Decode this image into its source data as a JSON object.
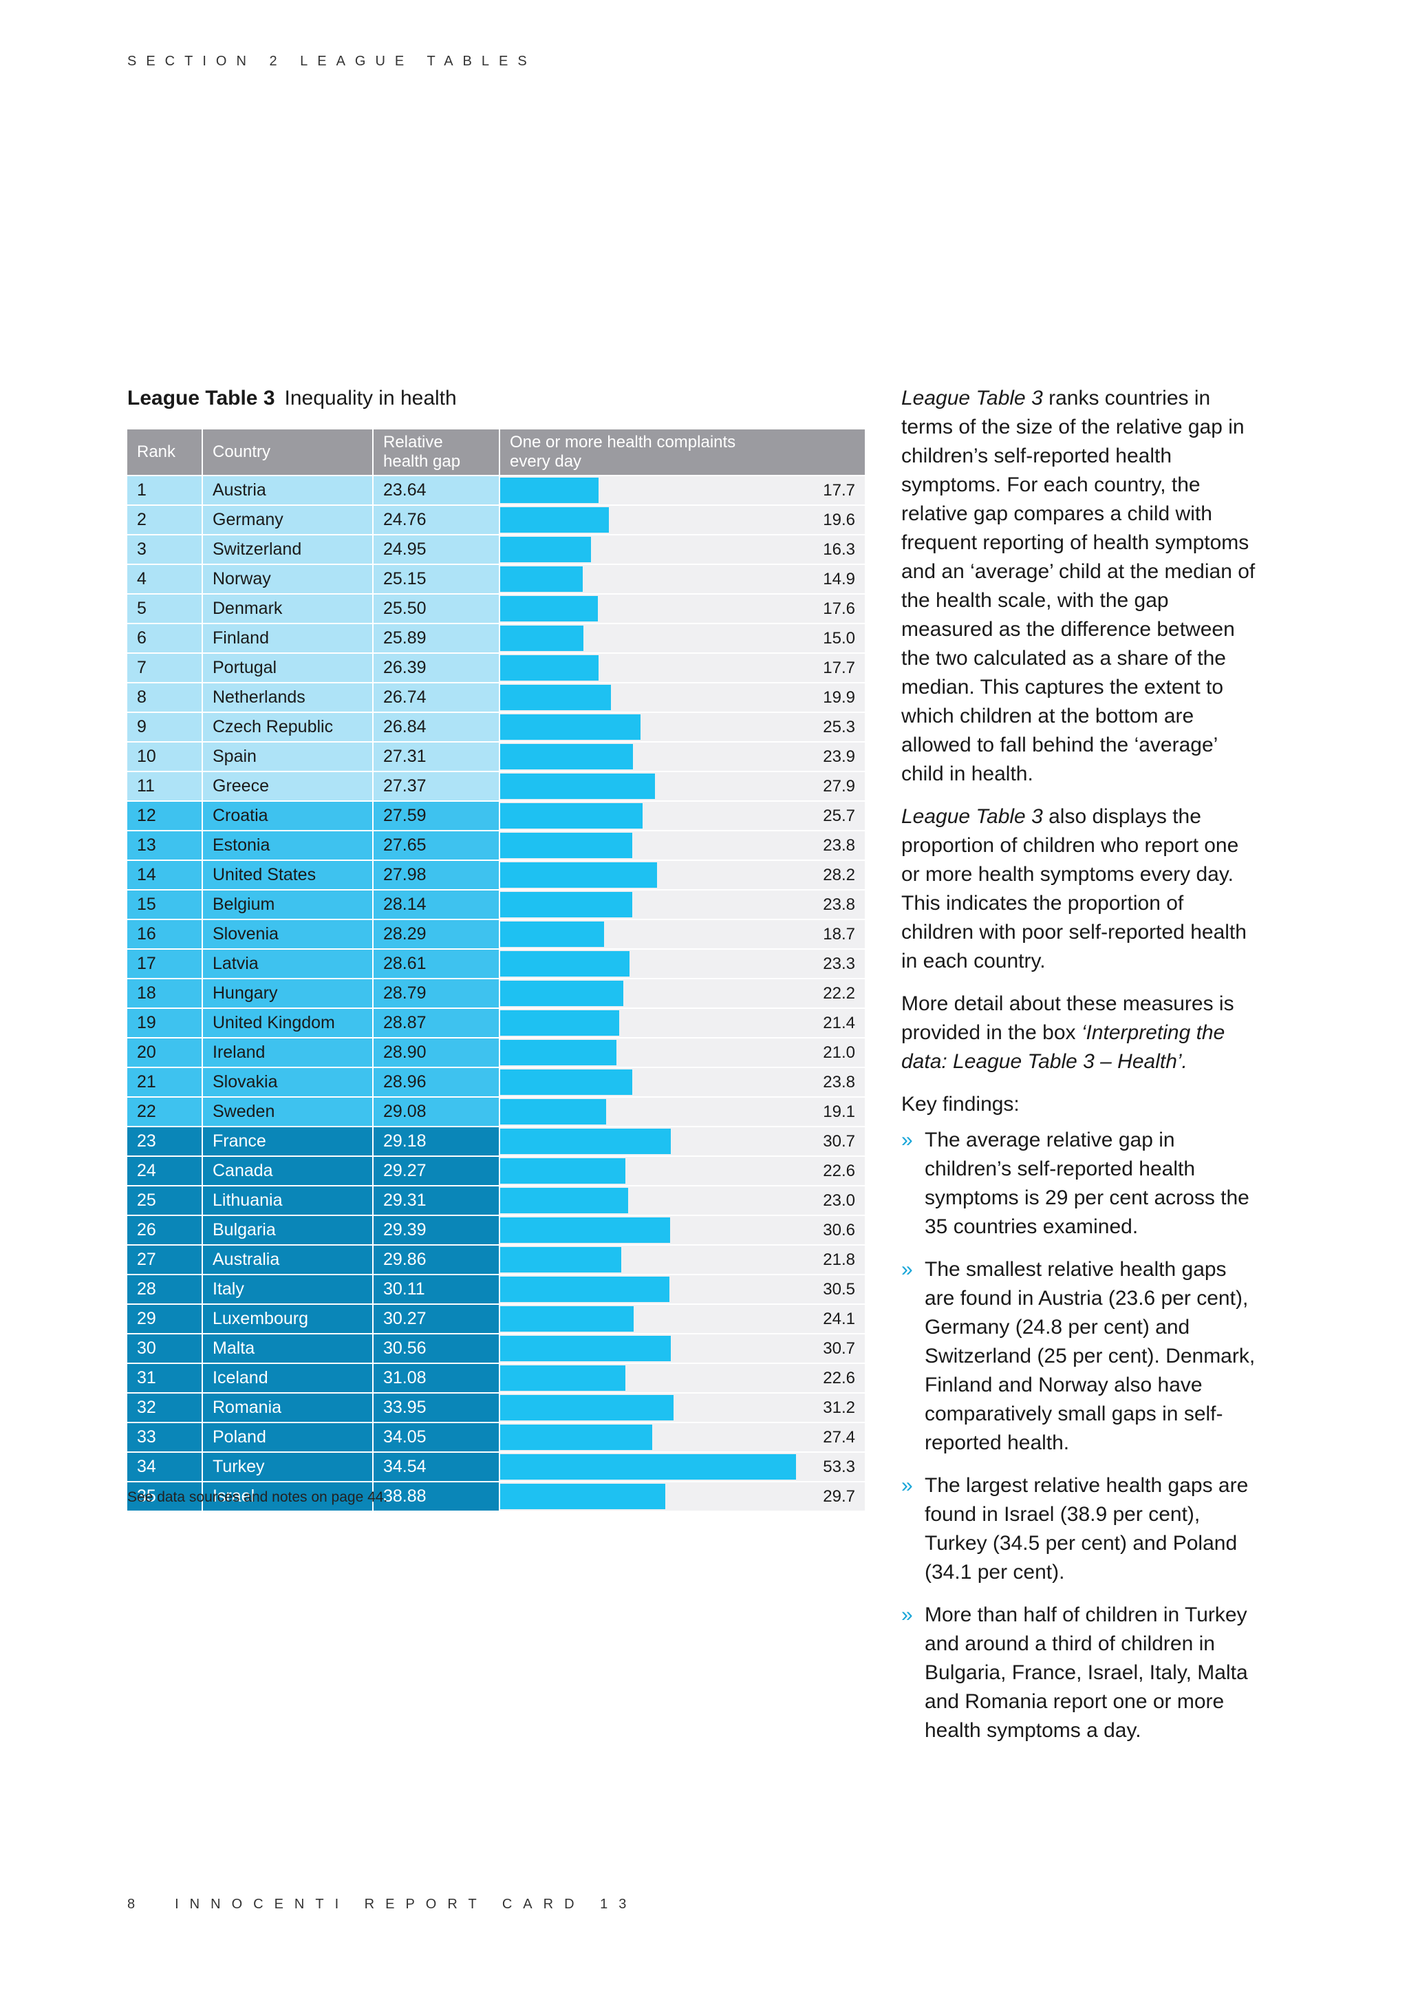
{
  "header": {
    "section": "SECTION 2 LEAGUE TABLES"
  },
  "footer": {
    "page": "8",
    "title": "INNOCENTI REPORT CARD 13"
  },
  "table": {
    "title_bold": "League Table 3",
    "title": "Inequality in health",
    "columns": {
      "rank": "Rank",
      "country": "Country",
      "gap_line1": "Relative",
      "gap_line2": "health gap",
      "complaints_line1": "One or more health complaints",
      "complaints_line2": "every day"
    },
    "bar_max": 53.3,
    "colors": {
      "tier1": "#aee3f7",
      "tier2": "#3ec2ef",
      "tier3": "#0a86b8",
      "bar": "#1ec1f2",
      "header": "#9b9ba0"
    },
    "rows": [
      {
        "rank": "1",
        "country": "Austria",
        "gap": "23.64",
        "complaints": "17.7",
        "tier": 1
      },
      {
        "rank": "2",
        "country": "Germany",
        "gap": "24.76",
        "complaints": "19.6",
        "tier": 1
      },
      {
        "rank": "3",
        "country": "Switzerland",
        "gap": "24.95",
        "complaints": "16.3",
        "tier": 1
      },
      {
        "rank": "4",
        "country": "Norway",
        "gap": "25.15",
        "complaints": "14.9",
        "tier": 1
      },
      {
        "rank": "5",
        "country": "Denmark",
        "gap": "25.50",
        "complaints": "17.6",
        "tier": 1
      },
      {
        "rank": "6",
        "country": "Finland",
        "gap": "25.89",
        "complaints": "15.0",
        "tier": 1
      },
      {
        "rank": "7",
        "country": "Portugal",
        "gap": "26.39",
        "complaints": "17.7",
        "tier": 1
      },
      {
        "rank": "8",
        "country": "Netherlands",
        "gap": "26.74",
        "complaints": "19.9",
        "tier": 1
      },
      {
        "rank": "9",
        "country": "Czech Republic",
        "gap": "26.84",
        "complaints": "25.3",
        "tier": 1
      },
      {
        "rank": "10",
        "country": "Spain",
        "gap": "27.31",
        "complaints": "23.9",
        "tier": 1
      },
      {
        "rank": "11",
        "country": "Greece",
        "gap": "27.37",
        "complaints": "27.9",
        "tier": 1
      },
      {
        "rank": "12",
        "country": "Croatia",
        "gap": "27.59",
        "complaints": "25.7",
        "tier": 2
      },
      {
        "rank": "13",
        "country": "Estonia",
        "gap": "27.65",
        "complaints": "23.8",
        "tier": 2
      },
      {
        "rank": "14",
        "country": "United States",
        "gap": "27.98",
        "complaints": "28.2",
        "tier": 2
      },
      {
        "rank": "15",
        "country": "Belgium",
        "gap": "28.14",
        "complaints": "23.8",
        "tier": 2
      },
      {
        "rank": "16",
        "country": "Slovenia",
        "gap": "28.29",
        "complaints": "18.7",
        "tier": 2
      },
      {
        "rank": "17",
        "country": "Latvia",
        "gap": "28.61",
        "complaints": "23.3",
        "tier": 2
      },
      {
        "rank": "18",
        "country": "Hungary",
        "gap": "28.79",
        "complaints": "22.2",
        "tier": 2
      },
      {
        "rank": "19",
        "country": "United Kingdom",
        "gap": "28.87",
        "complaints": "21.4",
        "tier": 2
      },
      {
        "rank": "20",
        "country": "Ireland",
        "gap": "28.90",
        "complaints": "21.0",
        "tier": 2
      },
      {
        "rank": "21",
        "country": "Slovakia",
        "gap": "28.96",
        "complaints": "23.8",
        "tier": 2
      },
      {
        "rank": "22",
        "country": "Sweden",
        "gap": "29.08",
        "complaints": "19.1",
        "tier": 2
      },
      {
        "rank": "23",
        "country": "France",
        "gap": "29.18",
        "complaints": "30.7",
        "tier": 3
      },
      {
        "rank": "24",
        "country": "Canada",
        "gap": "29.27",
        "complaints": "22.6",
        "tier": 3
      },
      {
        "rank": "25",
        "country": "Lithuania",
        "gap": "29.31",
        "complaints": "23.0",
        "tier": 3
      },
      {
        "rank": "26",
        "country": "Bulgaria",
        "gap": "29.39",
        "complaints": "30.6",
        "tier": 3
      },
      {
        "rank": "27",
        "country": "Australia",
        "gap": "29.86",
        "complaints": "21.8",
        "tier": 3
      },
      {
        "rank": "28",
        "country": "Italy",
        "gap": "30.11",
        "complaints": "30.5",
        "tier": 3
      },
      {
        "rank": "29",
        "country": "Luxembourg",
        "gap": "30.27",
        "complaints": "24.1",
        "tier": 3
      },
      {
        "rank": "30",
        "country": "Malta",
        "gap": "30.56",
        "complaints": "30.7",
        "tier": 3
      },
      {
        "rank": "31",
        "country": "Iceland",
        "gap": "31.08",
        "complaints": "22.6",
        "tier": 3
      },
      {
        "rank": "32",
        "country": "Romania",
        "gap": "33.95",
        "complaints": "31.2",
        "tier": 3
      },
      {
        "rank": "33",
        "country": "Poland",
        "gap": "34.05",
        "complaints": "27.4",
        "tier": 3
      },
      {
        "rank": "34",
        "country": "Turkey",
        "gap": "34.54",
        "complaints": "53.3",
        "tier": 3
      },
      {
        "rank": "35",
        "country": "Israel",
        "gap": "38.88",
        "complaints": "29.7",
        "tier": 3
      }
    ],
    "note": "See data sources and notes on page 44."
  },
  "side": {
    "p1_em": "League Table 3",
    "p1": " ranks countries in terms of the size of the relative gap in children’s self-reported health symptoms. For each country, the relative gap compares a child with frequent reporting of health symptoms and an ‘average’ child at the median of the health scale, with the gap measured as the difference between the two calculated as a share of the median. This captures the extent to which children at the bottom are allowed to fall behind the ‘average’ child in health.",
    "p2_em": "League Table 3",
    "p2": " also displays the proportion of children who report one or more health symptoms every day. This indicates the proportion of children with poor self-reported health in each country.",
    "p3_a": "More detail about these measures is provided in the box ",
    "p3_em": "‘Interpreting the data: League Table 3 – Health’.",
    "key_heading": "Key findings:",
    "bullet_mark": "»",
    "findings": [
      "The average relative gap in children’s self-reported health symptoms is 29 per cent across the 35 countries examined.",
      "The smallest relative health gaps are found in Austria (23.6 per cent), Germany (24.8 per cent) and Switzerland (25 per cent). Denmark, Finland and Norway also have comparatively small gaps in self-reported health.",
      "The largest relative health gaps are found in Israel (38.9 per cent), Turkey (34.5 per cent) and Poland (34.1 per cent).",
      "More than half of children in Turkey and around a third of children in Bulgaria, France, Israel, Italy, Malta and Romania report one or more health symptoms a day."
    ]
  }
}
